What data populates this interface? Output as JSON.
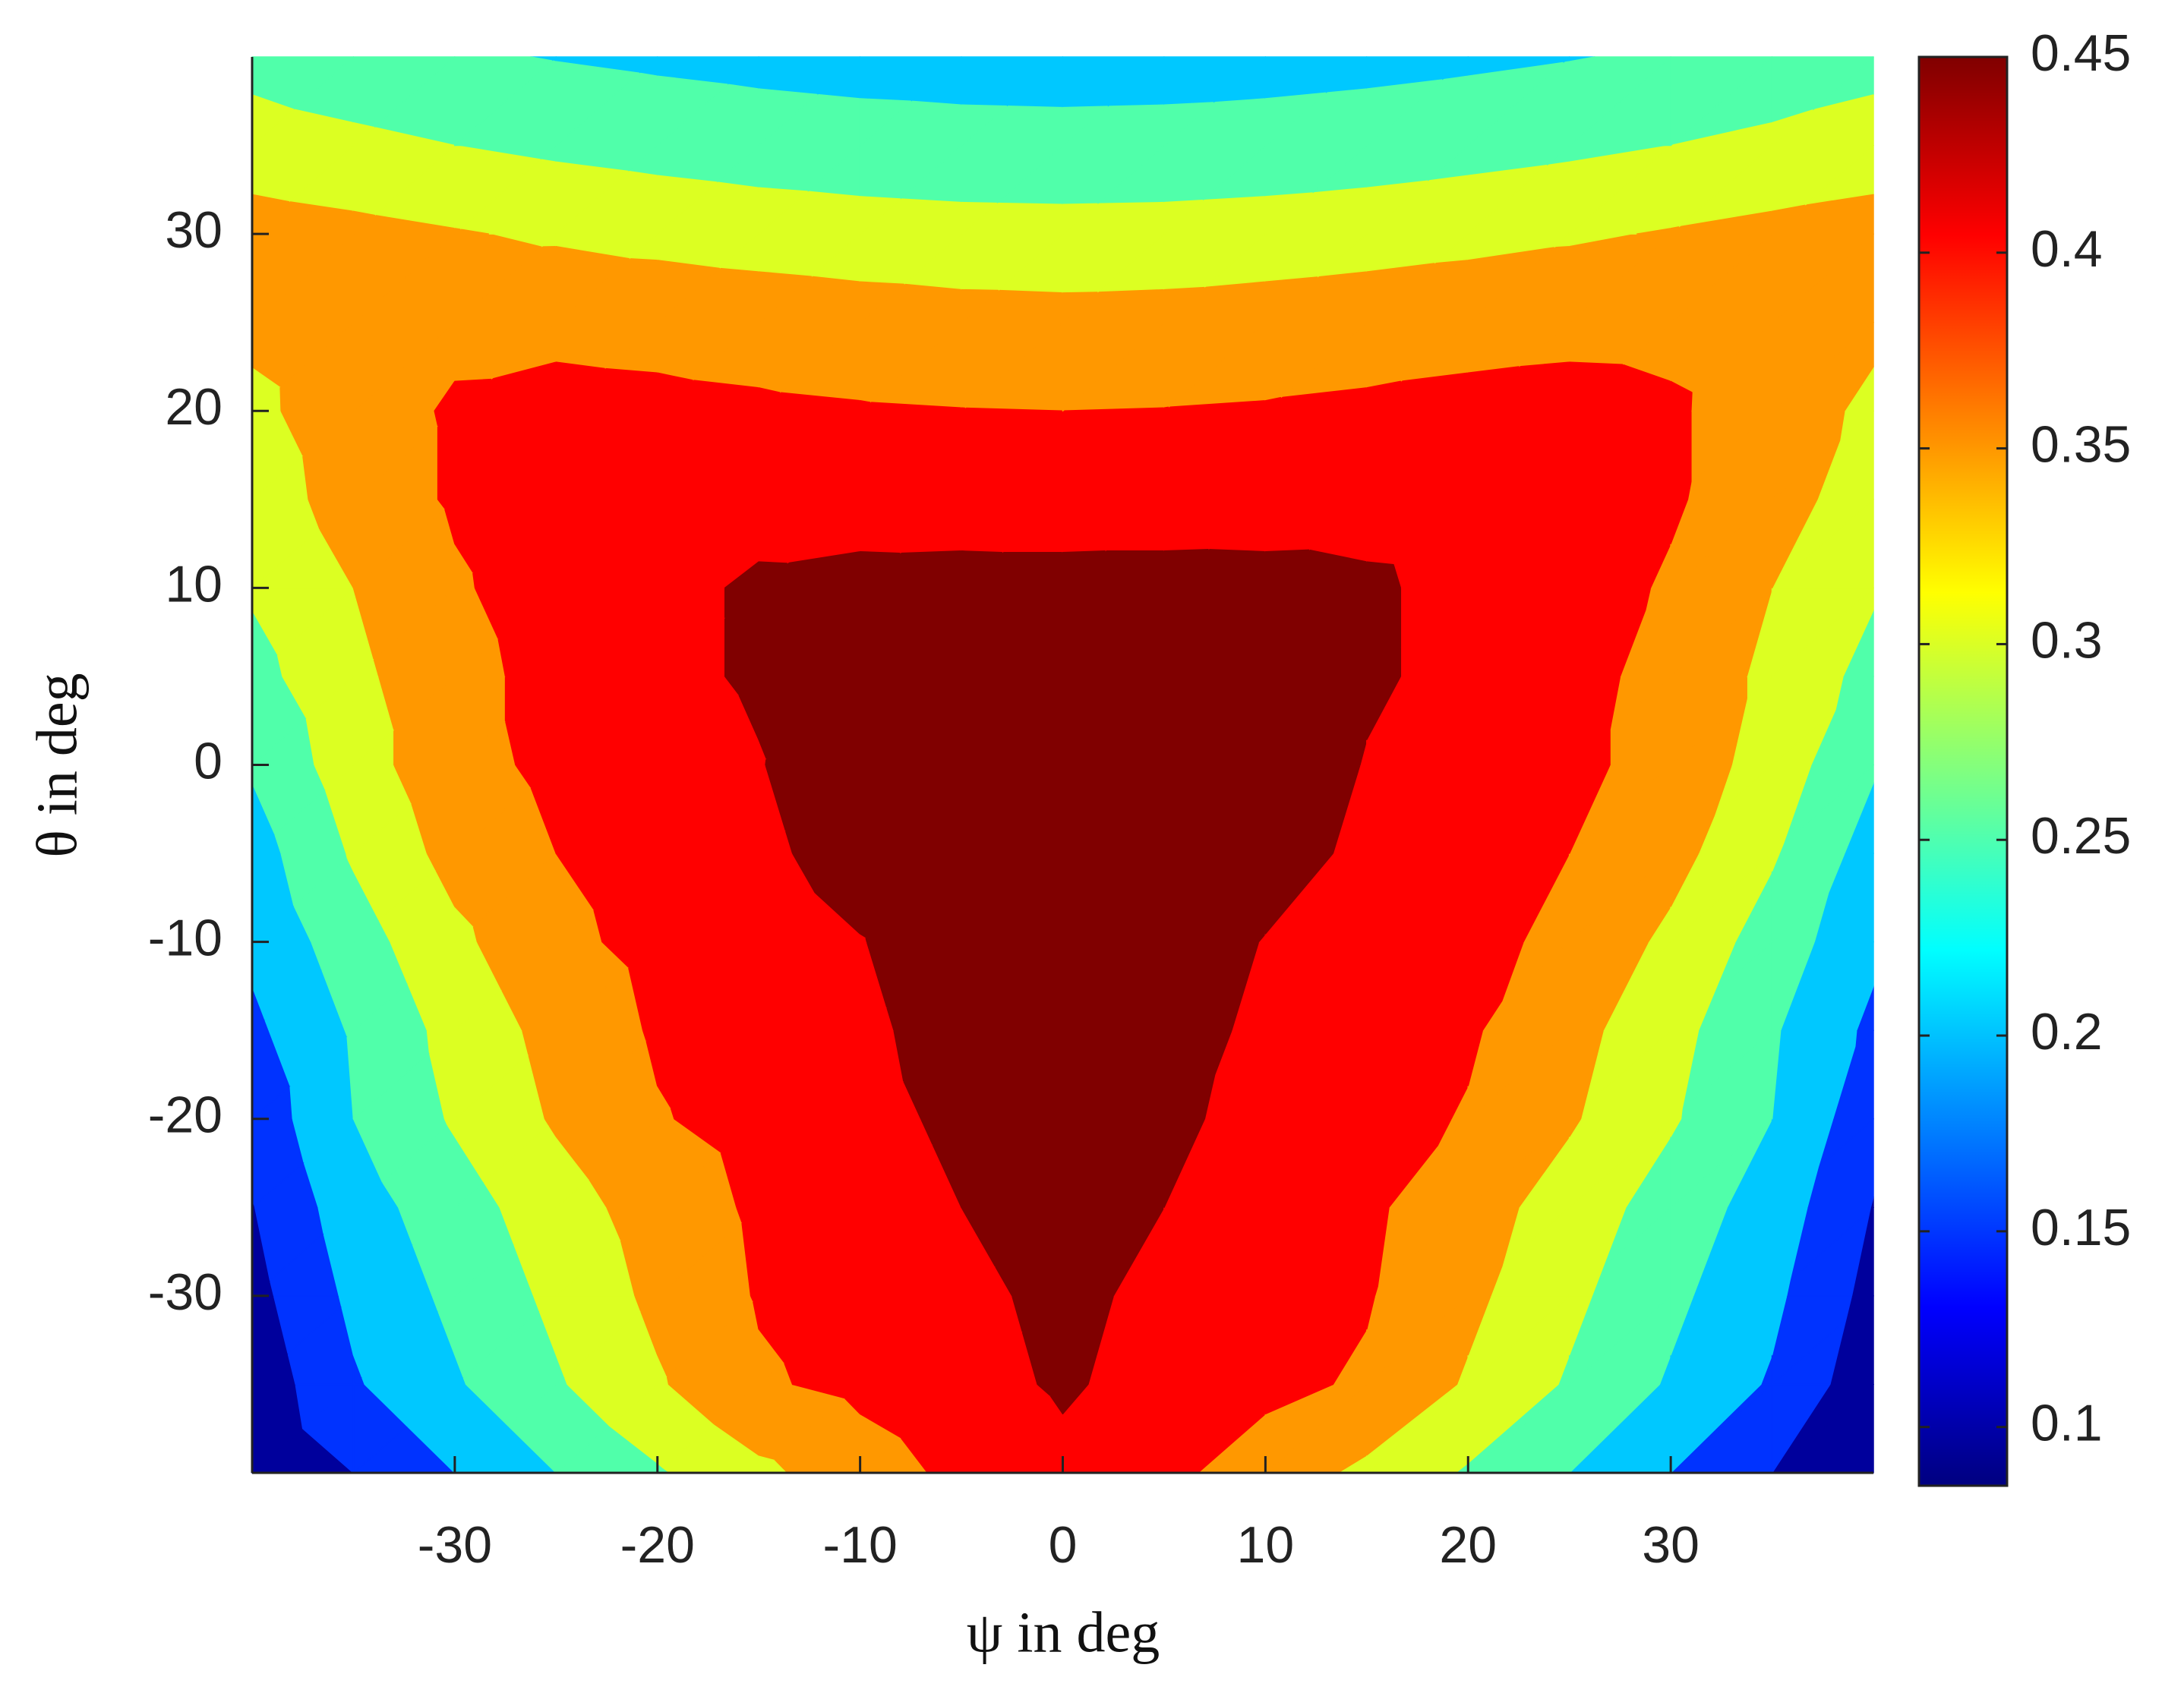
{
  "chart_data": {
    "type": "contour",
    "xlabel": "ψ in deg",
    "ylabel": "θ in deg",
    "x": [
      -40,
      -35,
      -30,
      -25,
      -20,
      -15,
      -10,
      -5,
      0,
      5,
      10,
      15,
      20,
      25,
      30,
      35,
      40
    ],
    "y": [
      -40,
      -35,
      -30,
      -25,
      -20,
      -15,
      -10,
      -5,
      0,
      5,
      10,
      15,
      20,
      25,
      30,
      35,
      40
    ],
    "z": [
      [
        0.09,
        0.13,
        0.175,
        0.22,
        0.26,
        0.3,
        0.335,
        0.365,
        0.39,
        0.365,
        0.335,
        0.3,
        0.26,
        0.22,
        0.175,
        0.13,
        0.09
      ],
      [
        0.1,
        0.17,
        0.215,
        0.26,
        0.305,
        0.35,
        0.365,
        0.385,
        0.405,
        0.385,
        0.365,
        0.35,
        0.305,
        0.26,
        0.215,
        0.17,
        0.1
      ],
      [
        0.115,
        0.185,
        0.23,
        0.275,
        0.32,
        0.358,
        0.37,
        0.39,
        0.41,
        0.39,
        0.37,
        0.358,
        0.32,
        0.275,
        0.23,
        0.185,
        0.115
      ],
      [
        0.128,
        0.2,
        0.245,
        0.29,
        0.33,
        0.362,
        0.375,
        0.4,
        0.42,
        0.4,
        0.375,
        0.362,
        0.33,
        0.29,
        0.245,
        0.2,
        0.128
      ],
      [
        0.145,
        0.22,
        0.27,
        0.315,
        0.352,
        0.37,
        0.385,
        0.41,
        0.425,
        0.41,
        0.385,
        0.37,
        0.352,
        0.315,
        0.27,
        0.22,
        0.145
      ],
      [
        0.165,
        0.225,
        0.28,
        0.325,
        0.36,
        0.375,
        0.39,
        0.42,
        0.43,
        0.42,
        0.39,
        0.375,
        0.36,
        0.325,
        0.28,
        0.225,
        0.165
      ],
      [
        0.185,
        0.245,
        0.3,
        0.345,
        0.367,
        0.375,
        0.398,
        0.428,
        0.435,
        0.428,
        0.398,
        0.375,
        0.367,
        0.345,
        0.3,
        0.245,
        0.185
      ],
      [
        0.2,
        0.27,
        0.325,
        0.355,
        0.372,
        0.39,
        0.42,
        0.435,
        0.44,
        0.435,
        0.42,
        0.39,
        0.372,
        0.355,
        0.325,
        0.27,
        0.2
      ],
      [
        0.225,
        0.29,
        0.34,
        0.365,
        0.38,
        0.398,
        0.428,
        0.437,
        0.44,
        0.437,
        0.428,
        0.398,
        0.38,
        0.365,
        0.34,
        0.29,
        0.225
      ],
      [
        0.25,
        0.3,
        0.34,
        0.37,
        0.39,
        0.405,
        0.425,
        0.429,
        0.43,
        0.429,
        0.425,
        0.405,
        0.39,
        0.37,
        0.34,
        0.3,
        0.25
      ],
      [
        0.27,
        0.31,
        0.35,
        0.375,
        0.39,
        0.405,
        0.409,
        0.41,
        0.41,
        0.41,
        0.409,
        0.405,
        0.39,
        0.375,
        0.35,
        0.31,
        0.27
      ],
      [
        0.285,
        0.33,
        0.36,
        0.378,
        0.386,
        0.388,
        0.387,
        0.386,
        0.385,
        0.386,
        0.387,
        0.388,
        0.386,
        0.378,
        0.36,
        0.33,
        0.285
      ],
      [
        0.3,
        0.335,
        0.36,
        0.366,
        0.364,
        0.361,
        0.358,
        0.356,
        0.355,
        0.356,
        0.358,
        0.361,
        0.364,
        0.366,
        0.36,
        0.335,
        0.3
      ],
      [
        0.32,
        0.336,
        0.345,
        0.346,
        0.343,
        0.338,
        0.332,
        0.327,
        0.325,
        0.327,
        0.332,
        0.338,
        0.343,
        0.346,
        0.345,
        0.336,
        0.32
      ],
      [
        0.33,
        0.322,
        0.313,
        0.304,
        0.296,
        0.289,
        0.284,
        0.281,
        0.28,
        0.281,
        0.284,
        0.289,
        0.296,
        0.304,
        0.313,
        0.322,
        0.33
      ],
      [
        0.285,
        0.275,
        0.265,
        0.256,
        0.249,
        0.243,
        0.239,
        0.236,
        0.235,
        0.236,
        0.239,
        0.243,
        0.249,
        0.256,
        0.265,
        0.275,
        0.285
      ],
      [
        0.25,
        0.236,
        0.226,
        0.218,
        0.212,
        0.207,
        0.203,
        0.201,
        0.2,
        0.201,
        0.203,
        0.207,
        0.212,
        0.218,
        0.226,
        0.236,
        0.25
      ]
    ],
    "levels": [
      0.085,
      0.13,
      0.175,
      0.22,
      0.265,
      0.31,
      0.355,
      0.4,
      0.45
    ],
    "level_colors": [
      "#00009c",
      "#0033ff",
      "#00c8ff",
      "#50ffaa",
      "#dcff22",
      "#ff9800",
      "#ff0000",
      "#800000"
    ],
    "xlim": [
      -40,
      40
    ],
    "ylim": [
      -40,
      40
    ],
    "xticks": [
      -30,
      -20,
      -10,
      0,
      10,
      20,
      30
    ],
    "yticks": [
      -30,
      -20,
      -10,
      0,
      10,
      20,
      30
    ],
    "colormap": "jet",
    "clim": [
      0.085,
      0.45
    ],
    "cticks": [
      0.1,
      0.15,
      0.2,
      0.25,
      0.3,
      0.35,
      0.4,
      0.45
    ]
  }
}
